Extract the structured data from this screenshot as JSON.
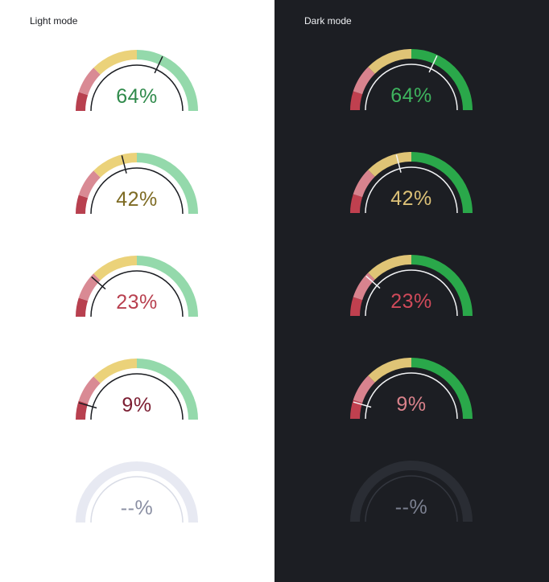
{
  "panels": [
    {
      "title": "Light mode",
      "theme": "light",
      "gauges": [
        {
          "label": "64%",
          "value": 64
        },
        {
          "label": "42%",
          "value": 42
        },
        {
          "label": "23%",
          "value": 23
        },
        {
          "label": "9%",
          "value": 9
        },
        {
          "label": "--%",
          "value": null
        }
      ]
    },
    {
      "title": "Dark mode",
      "theme": "dark",
      "gauges": [
        {
          "label": "64%",
          "value": 64
        },
        {
          "label": "42%",
          "value": 42
        },
        {
          "label": "23%",
          "value": 23
        },
        {
          "label": "9%",
          "value": 9
        },
        {
          "label": "--%",
          "value": null
        }
      ]
    }
  ],
  "themes": {
    "light": {
      "segments": [
        "#b8404f",
        "#d98a94",
        "#ebd27a",
        "#94d9ab"
      ],
      "empty_track": "#e7e9f2",
      "inner_arc": "#1b1d22",
      "empty_inner_arc": "#d9dce6",
      "needle": "#1b1d22",
      "value_colors": [
        "#7b1d31",
        "#b8404f",
        "#7d6a22",
        "#2f8a4b"
      ],
      "empty_value_color": "#8a8fa3"
    },
    "dark": {
      "segments": [
        "#c0404f",
        "#d8838e",
        "#dfc476",
        "#2aa84a"
      ],
      "empty_track": "#2a2d34",
      "inner_arc": "#f2f3f5",
      "empty_inner_arc": "#33363e",
      "needle": "#f2f3f5",
      "value_colors": [
        "#d9828b",
        "#d04a5a",
        "#dcc177",
        "#3eb45e"
      ],
      "empty_value_color": "#7b8090"
    }
  }
}
